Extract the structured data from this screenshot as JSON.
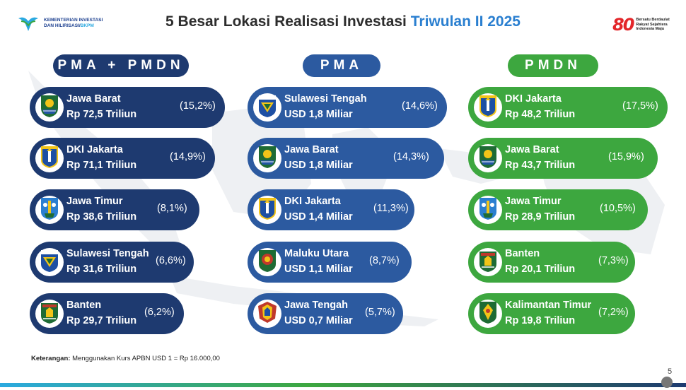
{
  "header": {
    "org_line1": "KEMENTERIAN INVESTASI",
    "org_line2_a": "DAN HILIRISASI/",
    "org_line2_b": "BKPM",
    "title_main": "5 Besar Lokasi Realisasi Investasi ",
    "title_accent": "Triwulan II 2025",
    "logo80": "80",
    "tagline_1": "Bersatu Berdaulat",
    "tagline_2": "Rakyat Sejahtera",
    "tagline_3": "Indonesia Maju"
  },
  "columns": [
    {
      "heading": "PMA + PMDN",
      "items": [
        {
          "name": "Jawa Barat",
          "amount": "Rp 72,5 Triliun",
          "pct": "(15,2%)",
          "emblem": "jawa-barat-emblem"
        },
        {
          "name": "DKI Jakarta",
          "amount": "Rp 71,1 Triliun",
          "pct": "(14,9%)",
          "emblem": "dki-jakarta-emblem"
        },
        {
          "name": "Jawa Timur",
          "amount": "Rp 38,6 Triliun",
          "pct": "(8,1%)",
          "emblem": "jawa-timur-emblem"
        },
        {
          "name": "Sulawesi Tengah",
          "amount": "Rp 31,6 Triliun",
          "pct": "(6,6%)",
          "emblem": "sulawesi-tengah-emblem"
        },
        {
          "name": "Banten",
          "amount": "Rp 29,7 Triliun",
          "pct": "(6,2%)",
          "emblem": "banten-emblem"
        }
      ]
    },
    {
      "heading": "PMA",
      "items": [
        {
          "name": "Sulawesi Tengah",
          "amount": "USD 1,8 Miliar",
          "pct": "(14,6%)",
          "emblem": "sulawesi-tengah-emblem"
        },
        {
          "name": "Jawa Barat",
          "amount": "USD 1,8 Miliar",
          "pct": "(14,3%)",
          "emblem": "jawa-barat-emblem"
        },
        {
          "name": "DKI Jakarta",
          "amount": "USD 1,4 Miliar",
          "pct": "(11,3%)",
          "emblem": "dki-jakarta-emblem"
        },
        {
          "name": "Maluku Utara",
          "amount": "USD 1,1 Miliar",
          "pct": "(8,7%)",
          "emblem": "maluku-utara-emblem"
        },
        {
          "name": "Jawa Tengah",
          "amount": "USD 0,7 Miliar",
          "pct": "(5,7%)",
          "emblem": "jawa-tengah-emblem"
        }
      ]
    },
    {
      "heading": "PMDN",
      "items": [
        {
          "name": "DKI Jakarta",
          "amount": "Rp 48,2 Triliun",
          "pct": "(17,5%)",
          "emblem": "dki-jakarta-emblem"
        },
        {
          "name": "Jawa Barat",
          "amount": "Rp 43,7 Triliun",
          "pct": "(15,9%)",
          "emblem": "jawa-barat-emblem"
        },
        {
          "name": "Jawa Timur",
          "amount": "Rp 28,9 Triliun",
          "pct": "(10,5%)",
          "emblem": "jawa-timur-emblem"
        },
        {
          "name": "Banten",
          "amount": "Rp 20,1 Triliun",
          "pct": "(7,3%)",
          "emblem": "banten-emblem"
        },
        {
          "name": "Kalimantan Timur",
          "amount": "Rp 19,8 Triliun",
          "pct": "(7,2%)",
          "emblem": "kalimantan-timur-emblem"
        }
      ]
    }
  ],
  "note_label": "Keterangan:",
  "note_text": " Menggunakan Kurs APBN USD 1 = Rp 16.000,00",
  "page_number": "5",
  "colors": {
    "dark": "#1e3a70",
    "mid": "#2c5aa0",
    "green": "#3da73f",
    "accent": "#2a7fd0"
  }
}
